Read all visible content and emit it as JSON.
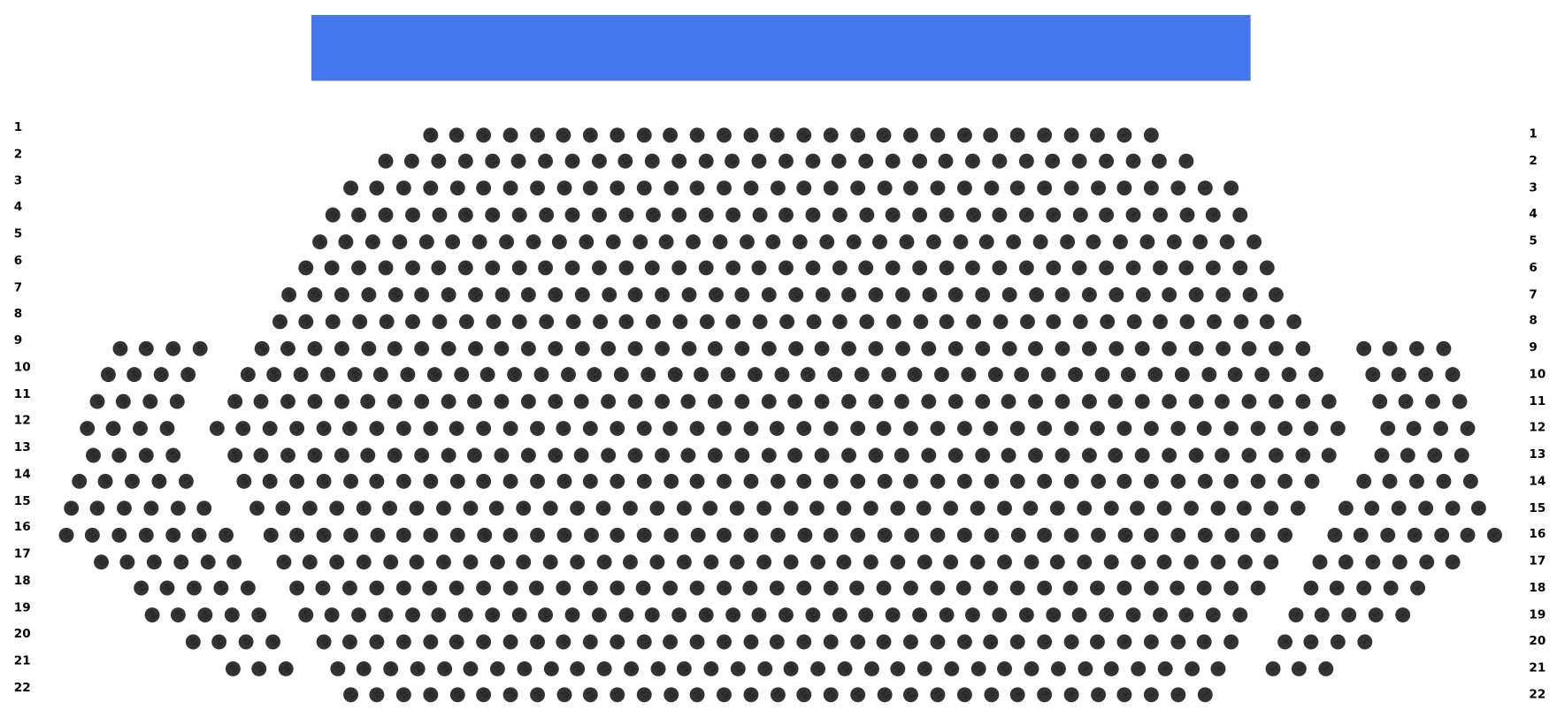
{
  "stage": {
    "color": "#4477ee"
  },
  "seat_color": "#333333",
  "rows": [
    {
      "label": "1",
      "right": 0,
      "center": 28,
      "left": 0
    },
    {
      "label": "2",
      "right": 0,
      "center": 31,
      "left": 0
    },
    {
      "label": "3",
      "right": 0,
      "center": 34,
      "left": 0
    },
    {
      "label": "4",
      "right": 0,
      "center": 35,
      "left": 0
    },
    {
      "label": "5",
      "right": 0,
      "center": 36,
      "left": 0
    },
    {
      "label": "6",
      "right": 0,
      "center": 37,
      "left": 0
    },
    {
      "label": "7",
      "right": 0,
      "center": 38,
      "left": 0
    },
    {
      "label": "8",
      "right": 0,
      "center": 39,
      "left": 0
    },
    {
      "label": "9",
      "right": 4,
      "center": 40,
      "left": 4
    },
    {
      "label": "10",
      "right": 4,
      "center": 41,
      "left": 4
    },
    {
      "label": "11",
      "right": 4,
      "center": 42,
      "left": 4
    },
    {
      "label": "12",
      "right": 4,
      "center": 43,
      "left": 4
    },
    {
      "label": "13",
      "right": 4,
      "center": 42,
      "left": 4
    },
    {
      "label": "14",
      "right": 5,
      "center": 41,
      "left": 5
    },
    {
      "label": "15",
      "right": 6,
      "center": 40,
      "left": 6
    },
    {
      "label": "16",
      "right": 7,
      "center": 39,
      "left": 7
    },
    {
      "label": "17",
      "right": 6,
      "center": 38,
      "left": 6
    },
    {
      "label": "18",
      "right": 5,
      "center": 37,
      "left": 5
    },
    {
      "label": "19",
      "right": 5,
      "center": 36,
      "left": 5
    },
    {
      "label": "20",
      "right": 4,
      "center": 35,
      "left": 4
    },
    {
      "label": "21",
      "right": 3,
      "center": 34,
      "left": 3
    },
    {
      "label": "22",
      "right": 0,
      "center": 33,
      "left": 0
    }
  ]
}
